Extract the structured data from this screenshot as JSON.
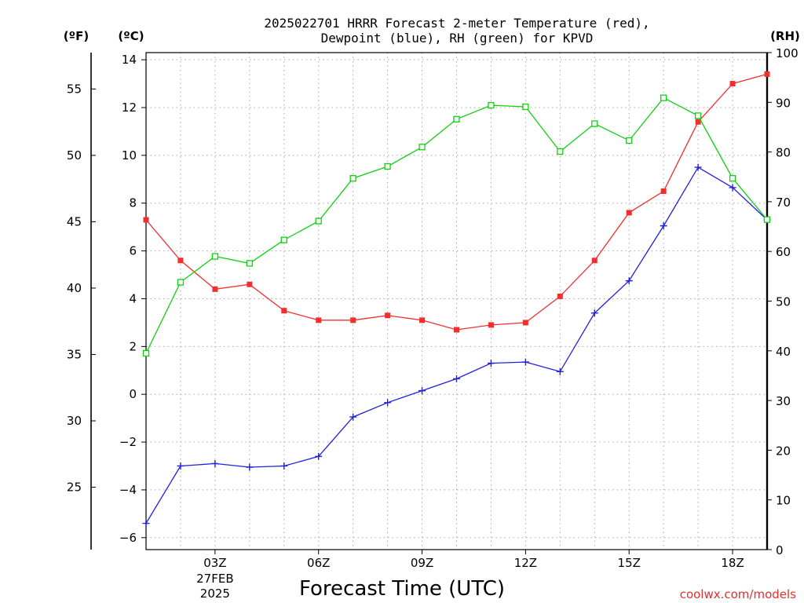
{
  "chart_data": {
    "type": "line",
    "title": {
      "line1": "2025022701 HRRR Forecast 2-meter Temperature (red),",
      "line2": "Dewpoint (blue), RH (green) for KPVD"
    },
    "units": {
      "fahrenheit": "(ºF)",
      "celsius": "(ºC)",
      "rh": "(RH)"
    },
    "xlabel": "Forecast Time (UTC)",
    "credit": "coolwx.com/models",
    "x_hours": [
      1,
      2,
      3,
      4,
      5,
      6,
      7,
      8,
      9,
      10,
      11,
      12,
      13,
      14,
      15,
      16,
      17,
      18,
      19
    ],
    "xlim": [
      1,
      19
    ],
    "x_ticks": [
      {
        "hour": 3,
        "label": "03Z",
        "date_line1": "27FEB",
        "date_line2": "2025"
      },
      {
        "hour": 6,
        "label": "06Z"
      },
      {
        "hour": 9,
        "label": "09Z"
      },
      {
        "hour": 12,
        "label": "12Z"
      },
      {
        "hour": 15,
        "label": "15Z"
      },
      {
        "hour": 18,
        "label": "18Z"
      }
    ],
    "x_minor_grid_hours": [
      2,
      3,
      4,
      5,
      6,
      7,
      8,
      9,
      10,
      11,
      12,
      13,
      14,
      15,
      16,
      17,
      18
    ],
    "celsius_axis": {
      "lim": [
        -6.5,
        14.3
      ],
      "ticks": [
        "14",
        "12",
        "10",
        "8",
        "6",
        "4",
        "2",
        "0",
        "−2",
        "−4",
        "−6"
      ],
      "tick_values": [
        14,
        12,
        10,
        8,
        6,
        4,
        2,
        0,
        -2,
        -4,
        -6
      ]
    },
    "fahrenheit_axis": {
      "ticks": [
        "55",
        "50",
        "45",
        "40",
        "35",
        "30",
        "25"
      ],
      "tick_values": [
        55,
        50,
        45,
        40,
        35,
        30,
        25
      ]
    },
    "rh_axis": {
      "lim": [
        0,
        100
      ],
      "ticks": [
        "100",
        "90",
        "80",
        "70",
        "60",
        "50",
        "40",
        "30",
        "20",
        "10",
        "0"
      ],
      "tick_values": [
        100,
        90,
        80,
        70,
        60,
        50,
        40,
        30,
        20,
        10,
        0
      ]
    },
    "grid": true,
    "series": [
      {
        "name": "Temperature",
        "axis": "celsius",
        "color": "#f03030",
        "marker": "filled-square",
        "values": [
          7.3,
          5.6,
          4.4,
          4.6,
          3.5,
          3.1,
          3.1,
          3.3,
          3.1,
          2.7,
          2.9,
          3.0,
          4.1,
          5.6,
          7.6,
          8.5,
          11.4,
          13.0,
          13.4
        ]
      },
      {
        "name": "Dewpoint",
        "axis": "celsius",
        "color": "#2020e0",
        "marker": "plus",
        "values": [
          -5.4,
          -3.0,
          -2.9,
          -3.05,
          -3.0,
          -2.6,
          -0.95,
          -0.35,
          0.15,
          0.65,
          1.3,
          1.35,
          0.95,
          3.4,
          4.75,
          7.05,
          9.5,
          8.65,
          7.3
        ]
      },
      {
        "name": "RH",
        "axis": "rh",
        "color": "#10d010",
        "marker": "open-square",
        "values": [
          39.5,
          53.8,
          59.0,
          57.6,
          62.3,
          66.1,
          74.7,
          77.1,
          81.0,
          86.6,
          89.4,
          89.1,
          80.1,
          85.7,
          82.3,
          90.9,
          87.3,
          74.7,
          66.4
        ]
      }
    ]
  }
}
